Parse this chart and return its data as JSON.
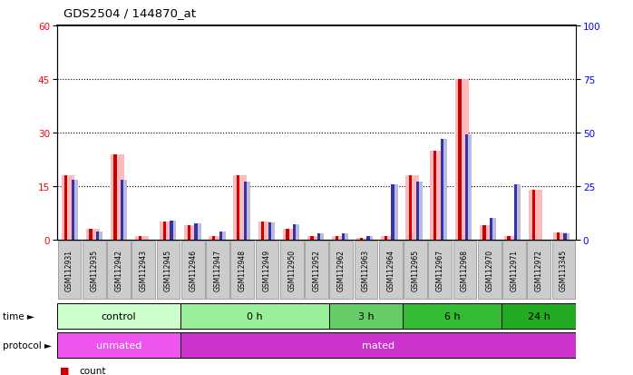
{
  "title": "GDS2504 / 144870_at",
  "samples": [
    "GSM112931",
    "GSM112935",
    "GSM112942",
    "GSM112943",
    "GSM112945",
    "GSM112946",
    "GSM112947",
    "GSM112948",
    "GSM112949",
    "GSM112950",
    "GSM112952",
    "GSM112962",
    "GSM112963",
    "GSM112964",
    "GSM112965",
    "GSM112967",
    "GSM112968",
    "GSM112970",
    "GSM112971",
    "GSM112972",
    "GSM113345"
  ],
  "pink_values": [
    18.0,
    3.0,
    24.0,
    1.0,
    5.0,
    4.0,
    1.0,
    18.0,
    5.0,
    3.0,
    1.0,
    1.0,
    0.5,
    1.0,
    18.0,
    25.0,
    45.0,
    4.0,
    1.0,
    14.0,
    2.0
  ],
  "lightblue_values": [
    28.0,
    4.0,
    28.0,
    0.0,
    9.0,
    7.5,
    4.0,
    27.0,
    8.0,
    7.0,
    3.0,
    3.0,
    1.5,
    26.0,
    27.0,
    47.0,
    49.0,
    10.0,
    26.0,
    0.0,
    3.0
  ],
  "red_values": [
    18.0,
    3.0,
    24.0,
    1.0,
    5.0,
    4.0,
    1.0,
    18.0,
    5.0,
    3.0,
    1.0,
    1.0,
    0.5,
    1.0,
    18.0,
    25.0,
    45.0,
    4.0,
    1.0,
    14.0,
    2.0
  ],
  "blue_values": [
    28.0,
    4.0,
    28.0,
    0.0,
    9.0,
    7.5,
    4.0,
    27.0,
    8.0,
    7.0,
    3.0,
    3.0,
    1.5,
    26.0,
    27.0,
    47.0,
    49.0,
    10.0,
    26.0,
    0.0,
    3.0
  ],
  "time_groups": [
    {
      "label": "control",
      "start": 0,
      "end": 5,
      "color": "#ccffcc"
    },
    {
      "label": "0 h",
      "start": 5,
      "end": 11,
      "color": "#99ee99"
    },
    {
      "label": "3 h",
      "start": 11,
      "end": 14,
      "color": "#66cc66"
    },
    {
      "label": "6 h",
      "start": 14,
      "end": 18,
      "color": "#33bb33"
    },
    {
      "label": "24 h",
      "start": 18,
      "end": 21,
      "color": "#22aa22"
    }
  ],
  "protocol_groups": [
    {
      "label": "unmated",
      "start": 0,
      "end": 5,
      "color": "#ee55ee"
    },
    {
      "label": "mated",
      "start": 5,
      "end": 21,
      "color": "#cc33cc"
    }
  ],
  "ylim_left": [
    0,
    60
  ],
  "ylim_right": [
    0,
    100
  ],
  "yticks_left": [
    0,
    15,
    30,
    45,
    60
  ],
  "yticks_right": [
    0,
    25,
    50,
    75,
    100
  ],
  "pink_color": "#ffbbbb",
  "lightblue_color": "#bbbbdd",
  "red_color": "#cc0000",
  "blue_color": "#3333aa",
  "sample_box_color": "#cccccc",
  "sample_box_edge": "#888888",
  "bg_color": "#ffffff"
}
